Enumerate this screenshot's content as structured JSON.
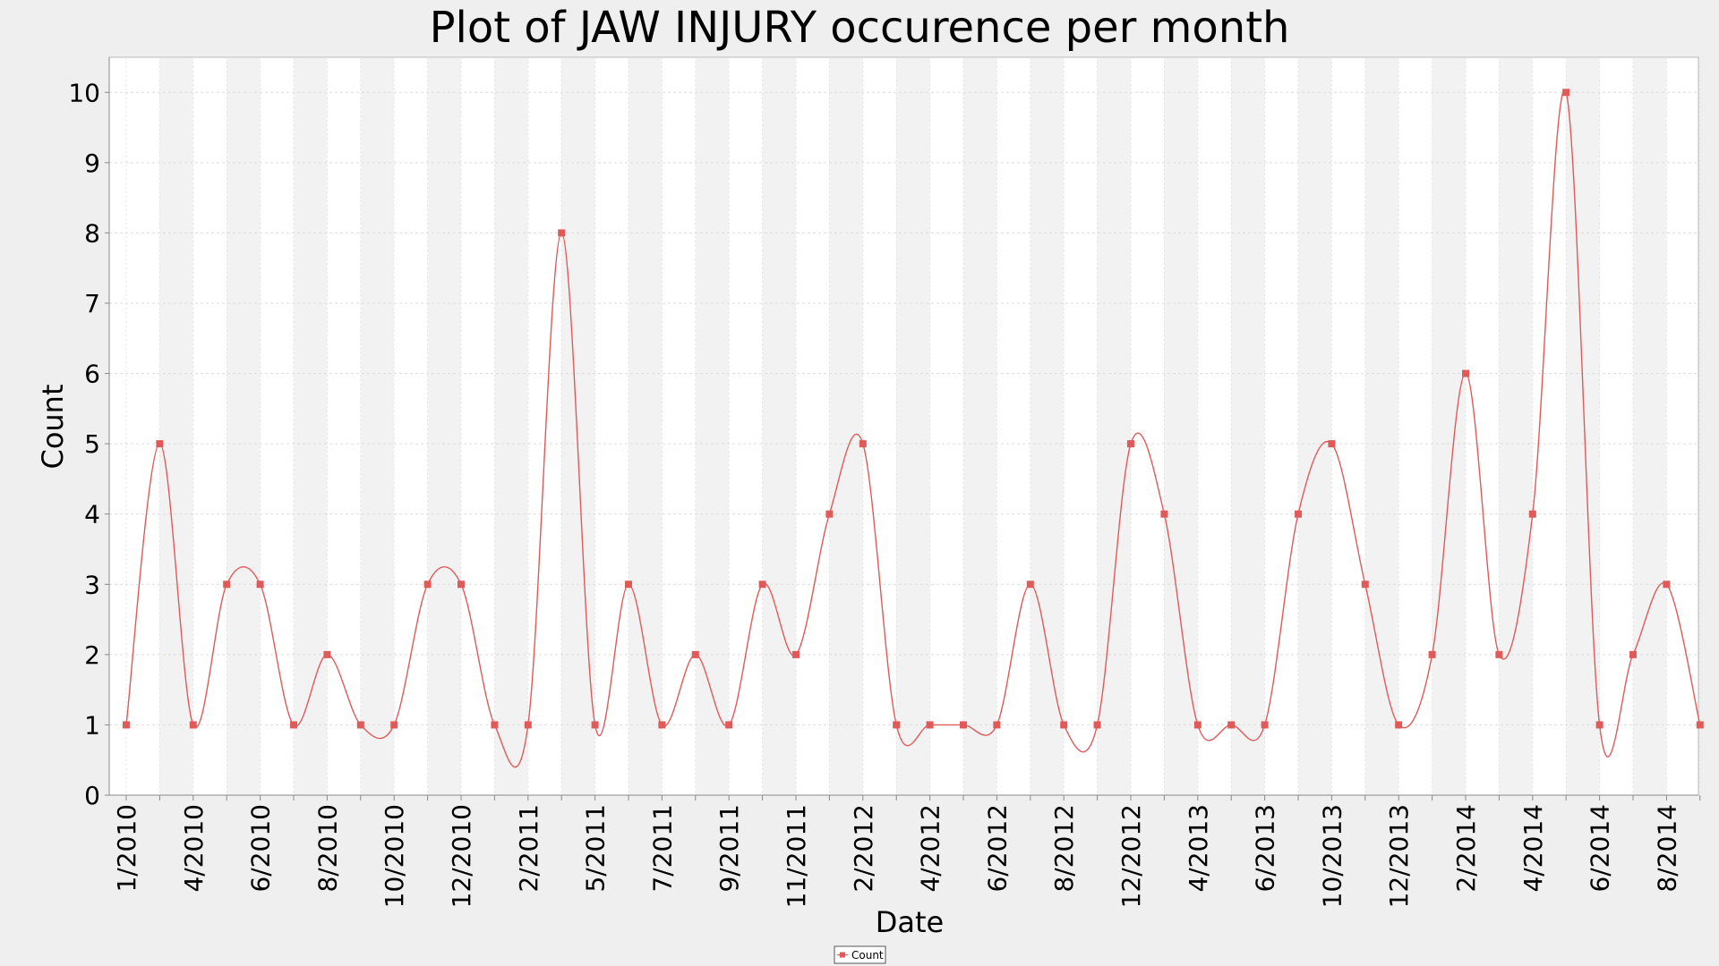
{
  "chart_data": {
    "type": "line",
    "title": "Plot of JAW INJURY occurence per month",
    "xlabel": "Date",
    "ylabel": "Count",
    "ylim": [
      0,
      10.5
    ],
    "yticks": [
      "0",
      "1",
      "2",
      "3",
      "4",
      "5",
      "6",
      "7",
      "8",
      "9",
      "10"
    ],
    "grid": true,
    "legend_position": "bottom-center",
    "x_tick_labels": [
      "1/2010",
      "4/2010",
      "6/2010",
      "8/2010",
      "10/2010",
      "12/2010",
      "2/2011",
      "5/2011",
      "7/2011",
      "9/2011",
      "11/2011",
      "2/2012",
      "4/2012",
      "6/2012",
      "8/2012",
      "12/2012",
      "4/2013",
      "6/2013",
      "10/2013",
      "12/2013",
      "2/2014",
      "4/2014",
      "6/2014",
      "8/2014"
    ],
    "series": [
      {
        "name": "Count",
        "color": "#e05a5a",
        "x": [
          "1/2010",
          "2/2010",
          "4/2010",
          "5/2010",
          "6/2010",
          "7/2010",
          "8/2010",
          "9/2010",
          "10/2010",
          "11/2010",
          "12/2010",
          "1/2011",
          "2/2011",
          "3/2011",
          "5/2011",
          "6/2011",
          "7/2011",
          "8/2011",
          "9/2011",
          "10/2011",
          "11/2011",
          "12/2011",
          "2/2012",
          "3/2012",
          "4/2012",
          "5/2012",
          "6/2012",
          "7/2012",
          "8/2012",
          "9/2012",
          "12/2012",
          "1/2013",
          "4/2013",
          "5/2013",
          "6/2013",
          "9/2013",
          "10/2013",
          "11/2013",
          "12/2013",
          "1/2014",
          "2/2014",
          "3/2014",
          "4/2014",
          "5/2014",
          "6/2014",
          "7/2014",
          "8/2014",
          "9/2014"
        ],
        "values": [
          1,
          5,
          1,
          3,
          3,
          1,
          2,
          1,
          1,
          3,
          3,
          1,
          1,
          8,
          1,
          3,
          1,
          2,
          1,
          3,
          2,
          4,
          5,
          1,
          1,
          1,
          1,
          3,
          1,
          1,
          5,
          4,
          1,
          1,
          1,
          4,
          5,
          3,
          1,
          2,
          6,
          2,
          4,
          10,
          1,
          2,
          3,
          1
        ]
      }
    ]
  }
}
